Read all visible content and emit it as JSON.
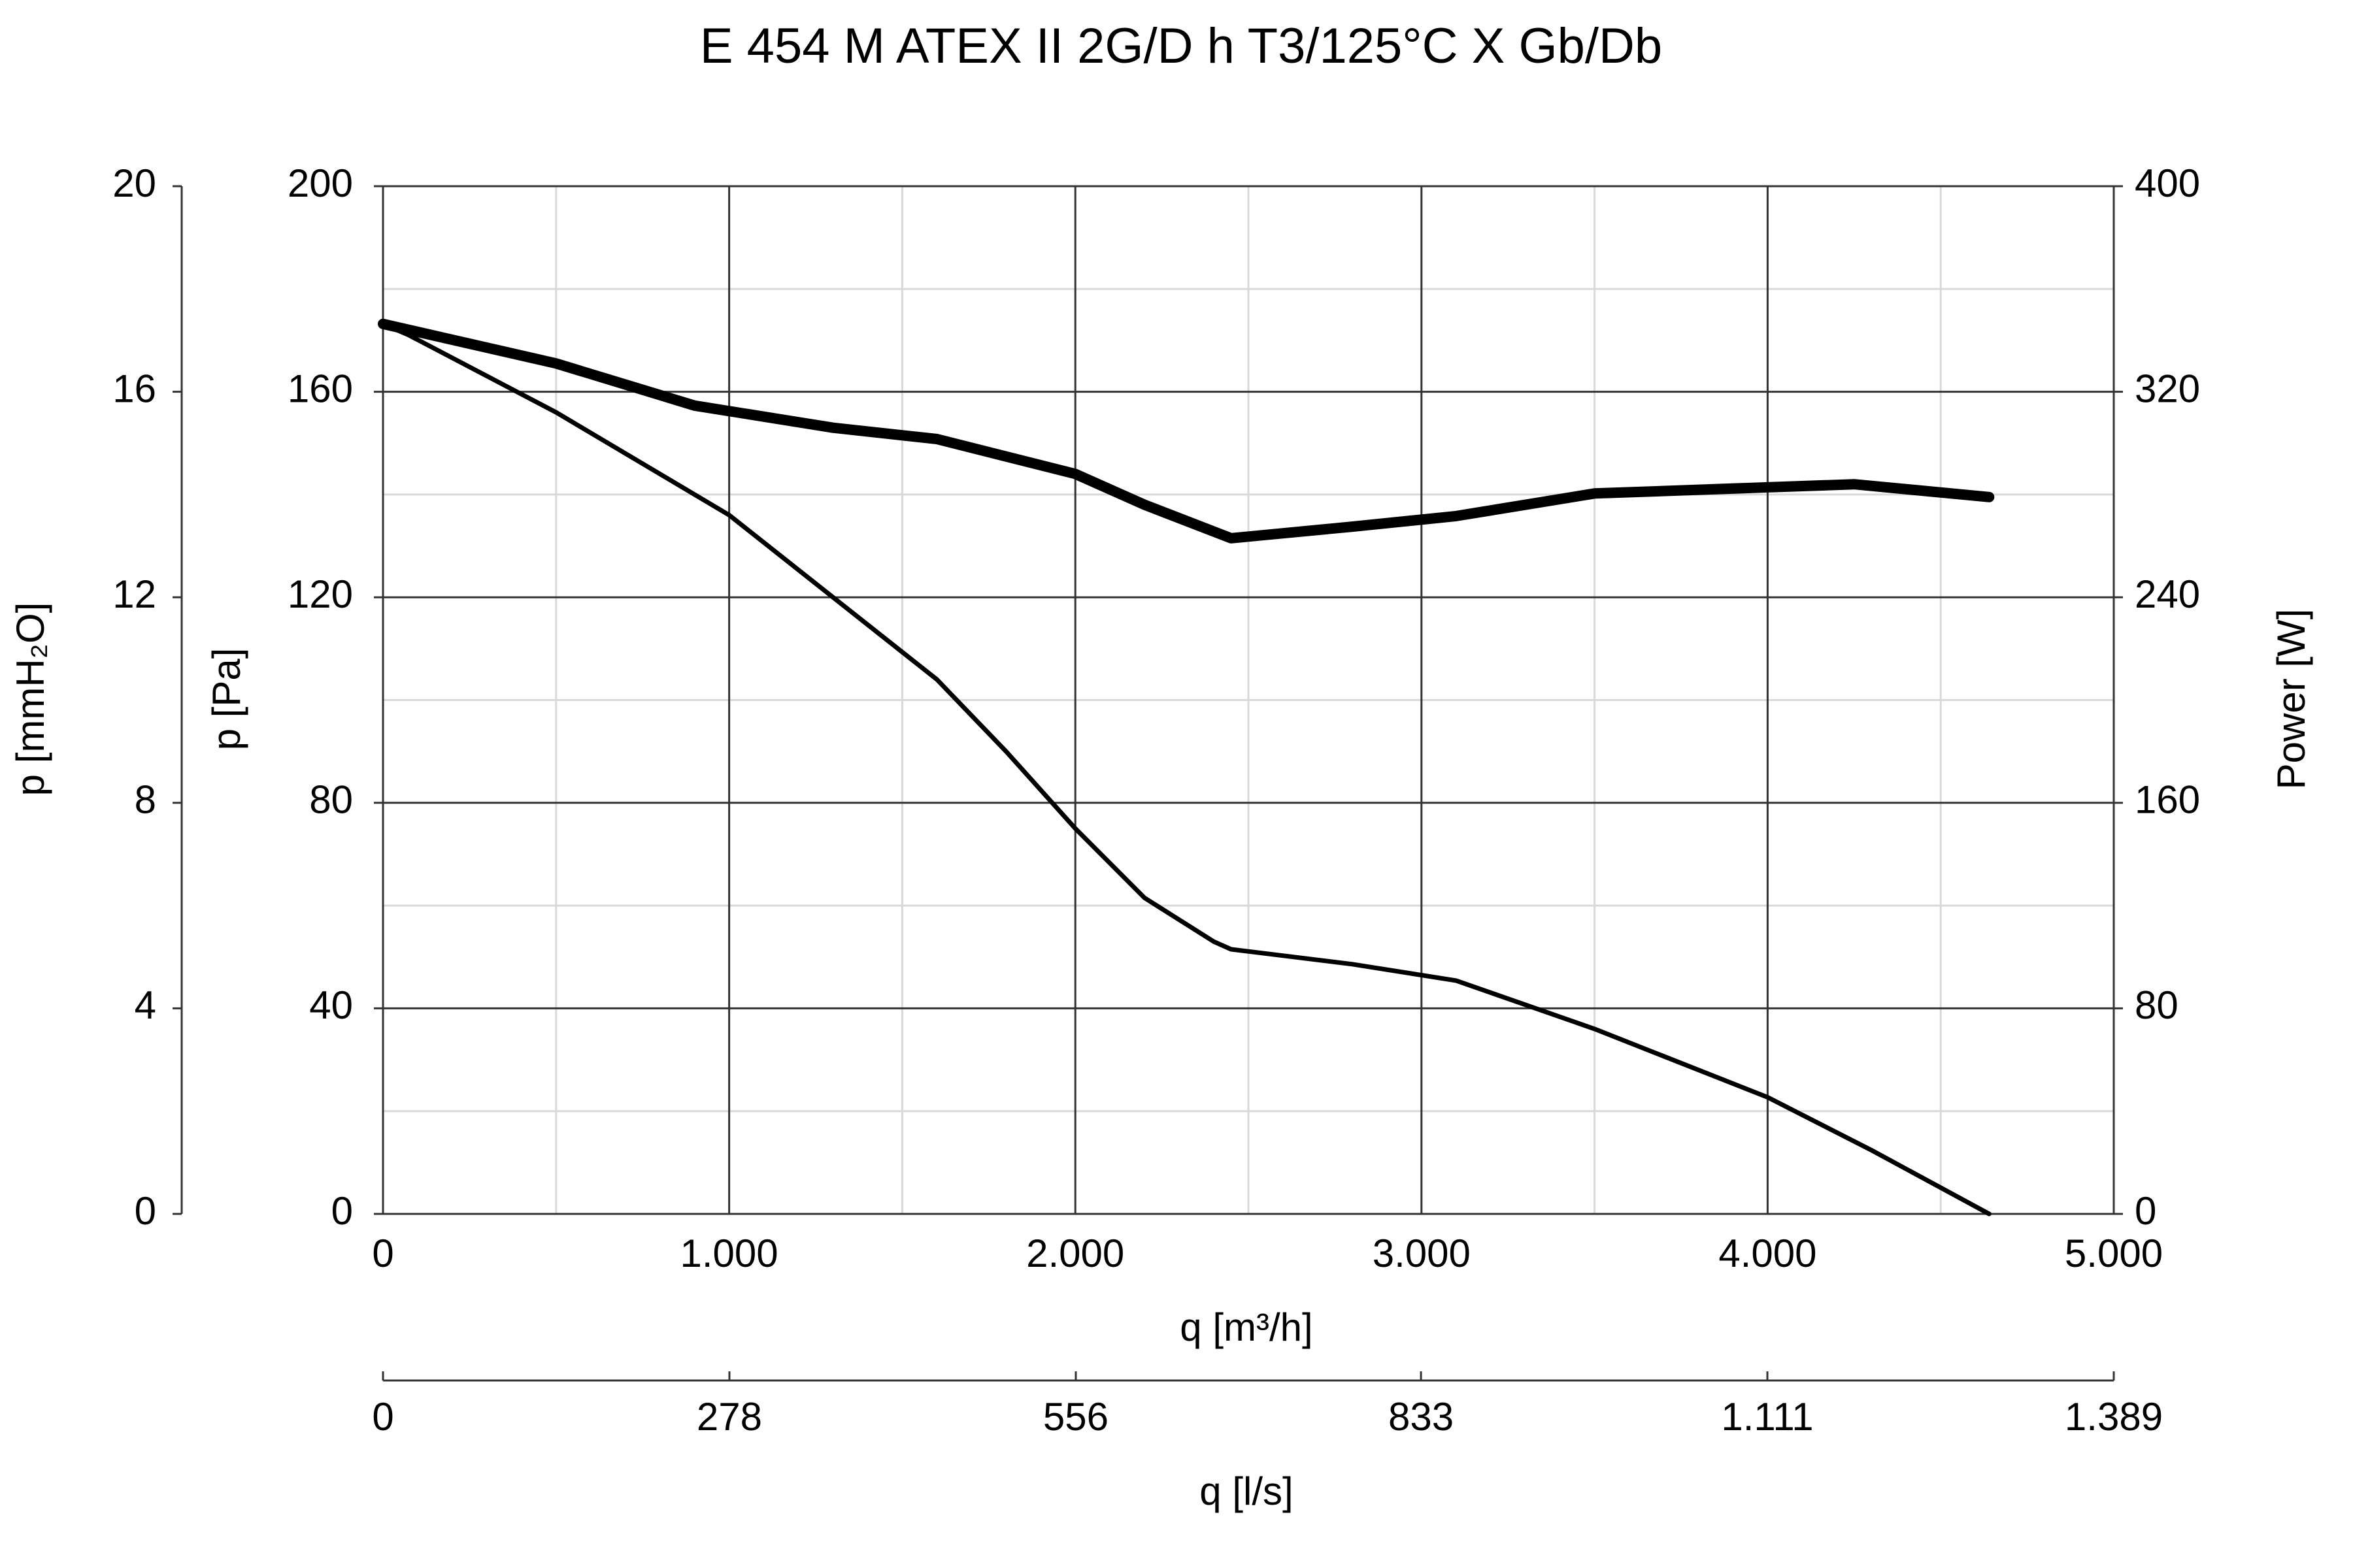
{
  "chart_data": {
    "type": "line",
    "title": "E 454 M ATEX II 2G/D h T3/125°C X Gb/Db",
    "xlabel": "q [m³/h]",
    "x2label": "q [l/s]",
    "ylabel": "p [Pa]",
    "y2label": "Power [W]",
    "y3label": "p [mmH₂O]",
    "xlim": [
      0,
      5000
    ],
    "xticks": [
      0,
      {
        "value": 1000,
        "label": "1.000"
      },
      {
        "value": 2000,
        "label": "2.000"
      },
      {
        "value": 3000,
        "label": "3.000"
      },
      {
        "value": 4000,
        "label": "4.000"
      },
      {
        "value": 5000,
        "label": "5.000"
      }
    ],
    "xminor": [
      500,
      1500,
      2500,
      3500,
      4500
    ],
    "x2lim": [
      0,
      1389
    ],
    "x2ticks": [
      0,
      278,
      556,
      833,
      {
        "value": 1111,
        "label": "1.111"
      },
      {
        "value": 1389,
        "label": "1.389"
      }
    ],
    "ylim": [
      0,
      200
    ],
    "yticks": [
      0,
      40,
      80,
      120,
      160,
      200
    ],
    "yminor": [
      20,
      60,
      100,
      140,
      180
    ],
    "y2lim": [
      0,
      400
    ],
    "y2ticks": [
      0,
      80,
      160,
      240,
      320,
      400
    ],
    "y3lim": [
      0,
      20
    ],
    "y3ticks": [
      0,
      4,
      8,
      12,
      16,
      20
    ],
    "grid": true,
    "series": [
      {
        "color": "#000000",
        "x": [
          0,
          75,
          500,
          1000,
          1300,
          1600,
          1800,
          2000,
          2200,
          2400,
          2450,
          2800,
          3100,
          3500,
          4000,
          4300,
          4640
        ],
        "values": [
          173.2,
          171,
          156,
          136,
          120,
          104,
          90,
          75,
          61.5,
          53,
          51.5,
          48.6,
          45.4,
          36,
          22.7,
          12.4,
          0
        ]
      },
      {
        "color": "#000000",
        "axis": "y2",
        "x": [
          0,
          500,
          900,
          1300,
          1600,
          2000,
          2200,
          2450,
          2800,
          3100,
          3500,
          4000,
          4250,
          4640
        ],
        "values": [
          346.4,
          331,
          314.6,
          306,
          301.6,
          288,
          276,
          263,
          267.5,
          271.6,
          280.4,
          282.8,
          284,
          279
        ]
      }
    ]
  }
}
